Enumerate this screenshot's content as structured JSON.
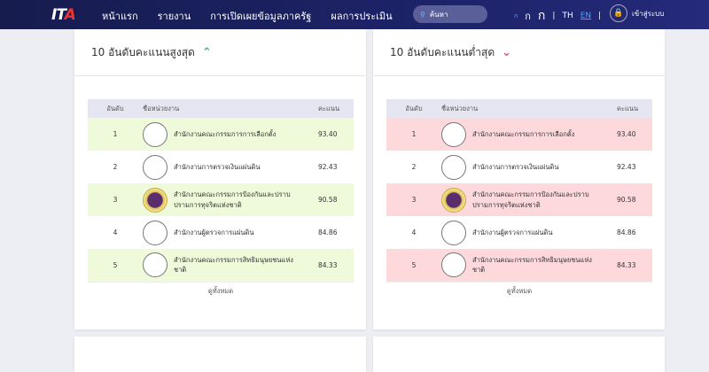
{
  "nav": {
    "logo": "ITA",
    "menu": [
      "หน้าแรก",
      "รายงาน",
      "การเปิดเผยข้อมูลภาครัฐ",
      "ผลการประเมิน"
    ],
    "search_placeholder": "ค้นหา",
    "font_sizes": [
      "ก",
      "ก",
      "ก"
    ],
    "lang_th": "TH",
    "lang_en": "EN",
    "login": "เข้าสู่ระบบ"
  },
  "colors": {
    "top_row": "#eefad9",
    "bottom_row": "#fdd9dc",
    "up": "#3cb371",
    "down": "#e0507a"
  },
  "top": {
    "title": "10 อันดับคะแนนสูงสุด",
    "icon": "chevron-up-icon"
  },
  "bottom": {
    "title": "10 อันดับคะแนนต่ำสุด",
    "icon": "chevron-down-icon"
  },
  "table": {
    "headers": [
      "อันดับ",
      "ชื่อหน่วยงาน",
      "คะแนน"
    ],
    "view_all": "ดูทั้งหมด",
    "rows": [
      {
        "rank": "1",
        "name": "สำนักงานคณะกรรมการการเลือกตั้ง",
        "score": "93.40",
        "logo": "broken-image"
      },
      {
        "rank": "2",
        "name": "สำนักงานการตรวจเงินแผ่นดิน",
        "score": "92.43",
        "logo": "broken-image"
      },
      {
        "rank": "3",
        "name": "สำนักงานคณะกรรมการป้องกันและปราบปรามการทุจริตแห่งชาติ",
        "score": "90.58",
        "logo": "seal"
      },
      {
        "rank": "4",
        "name": "สำนักงานผู้ตรวจการแผ่นดิน",
        "score": "84.86",
        "logo": "broken-image"
      },
      {
        "rank": "5",
        "name": "สำนักงานคณะกรรมการสิทธิมนุษยชนแห่งชาติ",
        "score": "84.33",
        "logo": "broken-image"
      }
    ]
  }
}
